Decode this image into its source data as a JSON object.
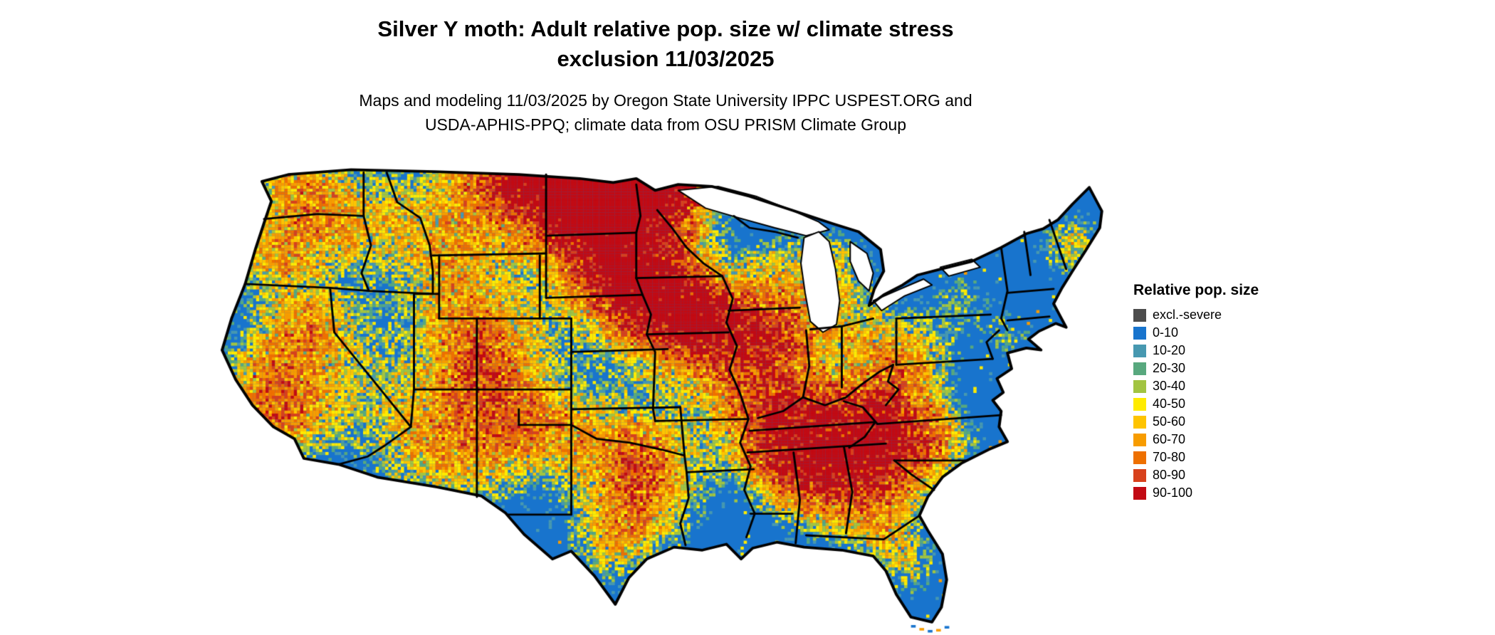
{
  "header": {
    "title_lines": [
      "Silver Y moth: Adult relative pop. size w/ climate stress",
      "exclusion 11/03/2025"
    ],
    "subtitle_lines": [
      "Maps and modeling 11/03/2025 by Oregon State University IPPC USPEST.ORG and",
      "USDA-APHIS-PPQ; climate data from OSU PRISM Climate Group"
    ]
  },
  "map": {
    "base_color": "#1874CD",
    "outline_color": "#000000",
    "lake_color": "#ffffff"
  },
  "legend": {
    "title": "Relative pop. size",
    "items": [
      {
        "label": "excl.-severe",
        "color": "#4d4d4d"
      },
      {
        "label": "0-10",
        "color": "#1874CD"
      },
      {
        "label": "10-20",
        "color": "#4798b0"
      },
      {
        "label": "20-30",
        "color": "#58a87e"
      },
      {
        "label": "30-40",
        "color": "#a2c441"
      },
      {
        "label": "40-50",
        "color": "#ffeb00"
      },
      {
        "label": "50-60",
        "color": "#fec400"
      },
      {
        "label": "60-70",
        "color": "#f79c00"
      },
      {
        "label": "70-80",
        "color": "#ee7000"
      },
      {
        "label": "80-90",
        "color": "#d8411c"
      },
      {
        "label": "90-100",
        "color": "#c20a13"
      }
    ]
  }
}
